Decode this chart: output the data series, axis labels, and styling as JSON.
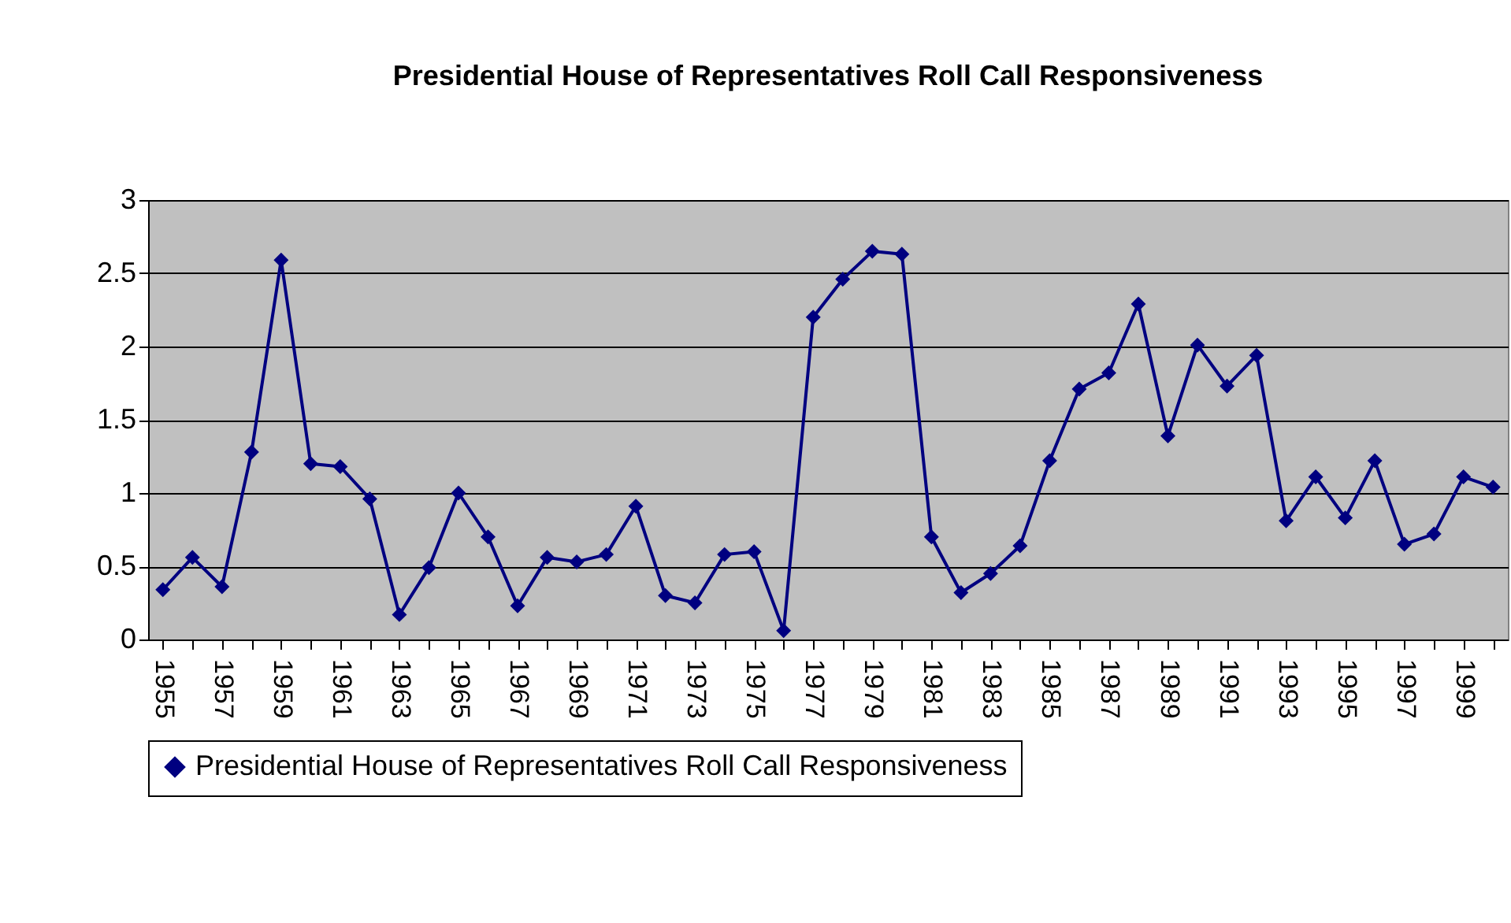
{
  "chart_data": {
    "type": "line",
    "title": "Presidential House of Representatives Roll Call Responsiveness",
    "categories": [
      "1955",
      null,
      "1957",
      null,
      "1959",
      null,
      "1961",
      null,
      "1963",
      null,
      "1965",
      null,
      "1967",
      null,
      "1969",
      null,
      "1971",
      null,
      "1973",
      null,
      "1975",
      null,
      "1977",
      null,
      "1979",
      null,
      "1981",
      null,
      "1983",
      null,
      "1985",
      null,
      "1987",
      null,
      "1989",
      null,
      "1991",
      null,
      "1993",
      null,
      "1995",
      null,
      "1997",
      null,
      "1999",
      null
    ],
    "series": [
      {
        "name": "Presidential House of Representatives Roll Call Responsiveness",
        "color": "#000080",
        "values": [
          0.34,
          0.56,
          0.36,
          1.28,
          2.59,
          1.2,
          1.18,
          0.96,
          0.17,
          0.49,
          1.0,
          0.7,
          0.23,
          0.56,
          0.53,
          0.58,
          0.91,
          0.3,
          0.25,
          0.58,
          0.6,
          0.06,
          2.2,
          2.46,
          2.65,
          2.63,
          0.7,
          0.32,
          0.45,
          0.64,
          1.22,
          1.71,
          1.82,
          2.29,
          1.39,
          2.01,
          1.73,
          1.94,
          0.81,
          1.11,
          0.83,
          1.22,
          0.65,
          0.72,
          1.11,
          1.04
        ]
      }
    ],
    "ylim": [
      0,
      3
    ],
    "yticks": [
      0,
      0.5,
      1,
      1.5,
      2,
      2.5,
      3
    ],
    "grid": "y",
    "legend": "bottom",
    "marker": "diamond",
    "line_style": "solid"
  }
}
